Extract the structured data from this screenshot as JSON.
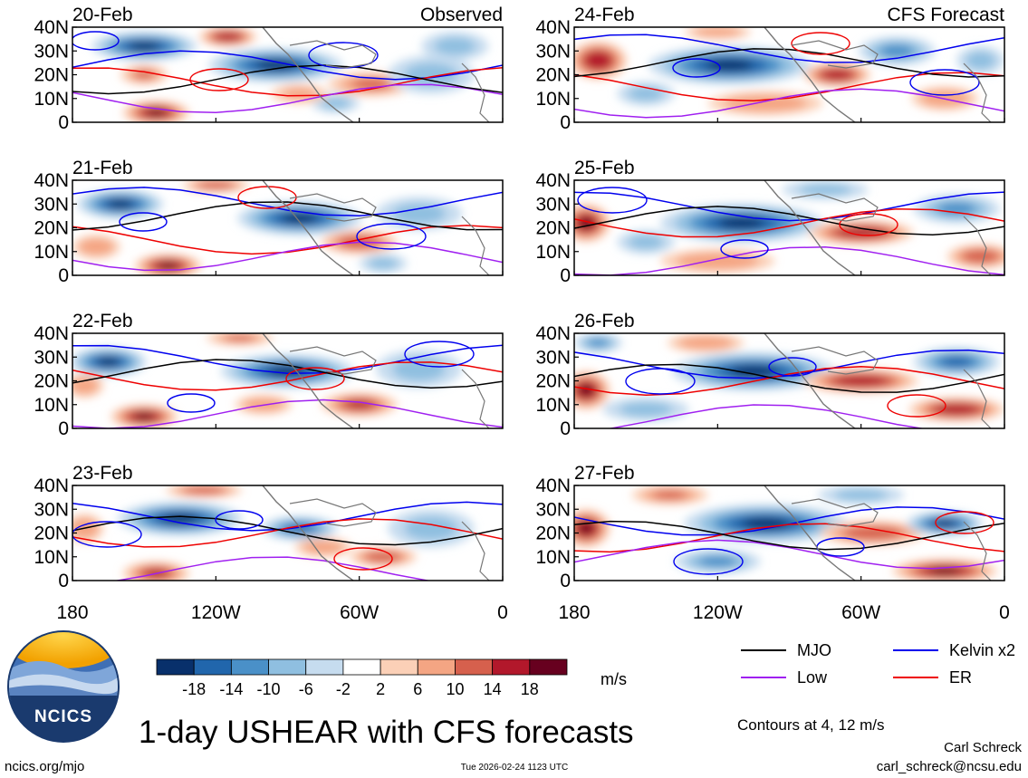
{
  "title": "1-day USHEAR with CFS forecasts",
  "colorbar": {
    "unit": "m/s",
    "ticks": [
      "-18",
      "-14",
      "-10",
      "-6",
      "-2",
      "2",
      "6",
      "10",
      "14",
      "18"
    ],
    "colors": [
      "#08306b",
      "#2166ac",
      "#4a90c8",
      "#8fbfe0",
      "#c6dcef",
      "#ffffff",
      "#fbd0b7",
      "#f4a583",
      "#d6604d",
      "#b2182b",
      "#67001f"
    ]
  },
  "legend": {
    "items": [
      {
        "name": "MJO",
        "color": "#000000"
      },
      {
        "name": "Kelvin x2",
        "color": "#0000ee"
      },
      {
        "name": "Low",
        "color": "#a020f0"
      },
      {
        "name": "ER",
        "color": "#ee0000"
      }
    ],
    "contour_note": "Contours at 4, 12 m/s"
  },
  "branding": {
    "logo_text": "NCICS",
    "site": "ncics.org/mjo",
    "author": "Carl Schreck",
    "email": "carl_schreck@ncsu.edu",
    "timestamp": "Tue 2026-02-24 1123 UTC"
  },
  "chart_data": {
    "type": "heatmap",
    "variable": "USHEAR",
    "units": "m/s",
    "lat_ticks": [
      "40N",
      "30N",
      "20N",
      "10N",
      "0"
    ],
    "lon_ticks": [
      "180",
      "120W",
      "60W",
      "0"
    ],
    "xlim": [
      -180,
      0
    ],
    "ylim": [
      0,
      40
    ],
    "columns": [
      {
        "header": "Observed",
        "panels": [
          "20-Feb",
          "21-Feb",
          "22-Feb",
          "23-Feb"
        ]
      },
      {
        "header": "CFS Forecast",
        "panels": [
          "24-Feb",
          "25-Feb",
          "26-Feb",
          "27-Feb"
        ]
      }
    ],
    "blobs": [
      [
        [
          [
            -150,
            32,
            22,
            6,
            -22
          ],
          [
            -95,
            24,
            28,
            7,
            -24
          ],
          [
            -115,
            36,
            12,
            4,
            18
          ],
          [
            -145,
            4,
            14,
            5,
            20
          ],
          [
            -150,
            20,
            10,
            4,
            12
          ],
          [
            -55,
            16,
            18,
            5,
            12
          ],
          [
            -70,
            8,
            10,
            4,
            -8
          ],
          [
            -30,
            20,
            18,
            8,
            -6
          ],
          [
            -85,
            12,
            12,
            4,
            8
          ],
          [
            -20,
            32,
            14,
            6,
            -6
          ]
        ],
        [
          [
            -160,
            30,
            18,
            6,
            -24
          ],
          [
            -85,
            24,
            26,
            7,
            -22
          ],
          [
            -140,
            4,
            14,
            5,
            22
          ],
          [
            -120,
            38,
            14,
            3,
            14
          ],
          [
            -60,
            14,
            16,
            5,
            14
          ],
          [
            -35,
            26,
            18,
            7,
            -8
          ],
          [
            -170,
            12,
            10,
            5,
            10
          ],
          [
            -50,
            5,
            10,
            4,
            -6
          ]
        ],
        [
          [
            -165,
            28,
            16,
            6,
            -18
          ],
          [
            -90,
            24,
            28,
            7,
            -20
          ],
          [
            -150,
            5,
            14,
            5,
            20
          ],
          [
            -60,
            10,
            16,
            5,
            16
          ],
          [
            -110,
            38,
            14,
            3,
            12
          ],
          [
            -35,
            25,
            18,
            8,
            -8
          ],
          [
            -100,
            10,
            12,
            4,
            10
          ],
          [
            -175,
            18,
            8,
            5,
            10
          ]
        ],
        [
          [
            -135,
            26,
            26,
            7,
            -20
          ],
          [
            -85,
            22,
            16,
            5,
            -14
          ],
          [
            -145,
            3,
            14,
            5,
            16
          ],
          [
            -50,
            10,
            14,
            4,
            14
          ],
          [
            -125,
            38,
            16,
            3,
            14
          ],
          [
            -75,
            14,
            12,
            4,
            10
          ],
          [
            -30,
            22,
            18,
            8,
            -6
          ],
          [
            -175,
            22,
            8,
            6,
            10
          ]
        ]
      ],
      [
        [
          [
            -115,
            24,
            34,
            8,
            -26
          ],
          [
            -170,
            26,
            12,
            8,
            18
          ],
          [
            -70,
            20,
            14,
            5,
            18
          ],
          [
            -45,
            30,
            16,
            6,
            -10
          ],
          [
            -100,
            8,
            24,
            5,
            10
          ],
          [
            -25,
            10,
            14,
            5,
            10
          ],
          [
            -150,
            12,
            12,
            5,
            -8
          ],
          [
            -10,
            26,
            10,
            6,
            -8
          ],
          [
            -120,
            38,
            14,
            3,
            10
          ]
        ],
        [
          [
            -110,
            22,
            34,
            8,
            -26
          ],
          [
            -175,
            22,
            10,
            8,
            22
          ],
          [
            -60,
            18,
            22,
            5,
            18
          ],
          [
            -20,
            28,
            18,
            6,
            -10
          ],
          [
            -120,
            6,
            24,
            5,
            10
          ],
          [
            -10,
            8,
            14,
            5,
            14
          ],
          [
            -75,
            36,
            18,
            4,
            -8
          ],
          [
            -150,
            14,
            12,
            5,
            -6
          ]
        ],
        [
          [
            -105,
            24,
            34,
            8,
            -26
          ],
          [
            -175,
            16,
            10,
            8,
            24
          ],
          [
            -60,
            20,
            24,
            5,
            18
          ],
          [
            -20,
            28,
            18,
            6,
            -14
          ],
          [
            -20,
            8,
            20,
            5,
            18
          ],
          [
            -150,
            8,
            18,
            5,
            -8
          ],
          [
            -125,
            36,
            16,
            4,
            10
          ],
          [
            -170,
            36,
            10,
            4,
            -12
          ]
        ],
        [
          [
            -100,
            24,
            34,
            8,
            -26
          ],
          [
            -175,
            22,
            10,
            8,
            26
          ],
          [
            -55,
            20,
            22,
            5,
            14
          ],
          [
            -25,
            24,
            16,
            5,
            -18
          ],
          [
            -25,
            4,
            22,
            5,
            22
          ],
          [
            -120,
            8,
            18,
            5,
            -10
          ],
          [
            -140,
            36,
            16,
            4,
            12
          ],
          [
            -60,
            36,
            18,
            4,
            -8
          ]
        ]
      ]
    ]
  }
}
